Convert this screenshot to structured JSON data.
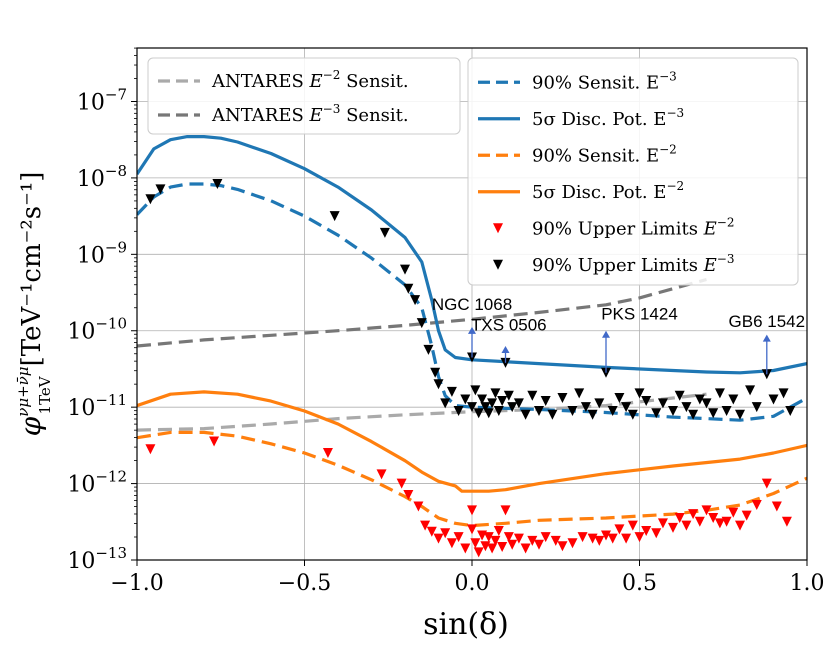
{
  "chart_data": {
    "type": "line",
    "xlabel": "sin(δ)",
    "ylabel_main": "φ",
    "ylabel_sup": "νμ+ν̄μ",
    "ylabel_sub": "1TeV",
    "ylabel_units": "[TeV⁻¹cm⁻²s⁻¹]",
    "xlim": [
      -1.0,
      1.0
    ],
    "ylim_log10": [
      -13,
      -6.3
    ],
    "x_ticks": [
      {
        "value": -1.0,
        "label": "−1.0"
      },
      {
        "value": -0.5,
        "label": "−0.5"
      },
      {
        "value": 0.0,
        "label": "0.0"
      },
      {
        "value": 0.5,
        "label": "0.5"
      },
      {
        "value": 1.0,
        "label": "1.0"
      }
    ],
    "y_ticks": [
      {
        "exp": -13,
        "base": "10",
        "sup": "−13"
      },
      {
        "exp": -12,
        "base": "10",
        "sup": "−12"
      },
      {
        "exp": -11,
        "base": "10",
        "sup": "−11"
      },
      {
        "exp": -10,
        "base": "10",
        "sup": "−10"
      },
      {
        "exp": -9,
        "base": "10",
        "sup": "−9"
      },
      {
        "exp": -8,
        "base": "10",
        "sup": "−8"
      },
      {
        "exp": -7,
        "base": "10",
        "sup": "−7"
      }
    ],
    "grid": true,
    "series": [
      {
        "name": "ANTARES E^-2 Sensit.",
        "color": "#aaaaaa",
        "style": "dashed",
        "x": [
          -1.0,
          -0.8,
          -0.6,
          -0.4,
          -0.2,
          0.0,
          0.2,
          0.4,
          0.6,
          0.7
        ],
        "log10y": [
          -11.3,
          -11.28,
          -11.22,
          -11.15,
          -11.1,
          -11.06,
          -11.03,
          -10.98,
          -10.88,
          -10.83
        ]
      },
      {
        "name": "ANTARES E^-3 Sensit.",
        "color": "#777777",
        "style": "dashed",
        "x": [
          -1.0,
          -0.8,
          -0.6,
          -0.4,
          -0.2,
          0.0,
          0.2,
          0.4,
          0.5,
          0.6,
          0.7
        ],
        "log10y": [
          -10.2,
          -10.12,
          -10.06,
          -10.0,
          -9.93,
          -9.85,
          -9.76,
          -9.66,
          -9.57,
          -9.45,
          -9.33
        ]
      },
      {
        "name": "90% Sensit. E^-3",
        "color": "#1f77b4",
        "style": "dashed",
        "x": [
          -1.0,
          -0.95,
          -0.9,
          -0.85,
          -0.8,
          -0.75,
          -0.7,
          -0.6,
          -0.5,
          -0.4,
          -0.3,
          -0.2,
          -0.15,
          -0.12,
          -0.1,
          -0.08,
          -0.05,
          0.0,
          0.2,
          0.4,
          0.6,
          0.7,
          0.8,
          0.9,
          1.0
        ],
        "log10y": [
          -8.48,
          -8.25,
          -8.12,
          -8.08,
          -8.08,
          -8.1,
          -8.15,
          -8.3,
          -8.5,
          -8.75,
          -9.05,
          -9.4,
          -9.7,
          -10.2,
          -10.6,
          -10.85,
          -10.98,
          -11.0,
          -11.03,
          -11.07,
          -11.13,
          -11.15,
          -11.17,
          -11.12,
          -10.88
        ]
      },
      {
        "name": "5σ Disc. Pot. E^-3",
        "color": "#1f77b4",
        "style": "solid",
        "x": [
          -1.0,
          -0.95,
          -0.9,
          -0.85,
          -0.8,
          -0.75,
          -0.7,
          -0.6,
          -0.5,
          -0.4,
          -0.3,
          -0.2,
          -0.15,
          -0.12,
          -0.1,
          -0.08,
          -0.05,
          0.0,
          0.2,
          0.4,
          0.6,
          0.7,
          0.8,
          0.9,
          1.0
        ],
        "log10y": [
          -7.95,
          -7.62,
          -7.5,
          -7.46,
          -7.46,
          -7.48,
          -7.53,
          -7.68,
          -7.88,
          -8.12,
          -8.42,
          -8.78,
          -9.1,
          -9.6,
          -10.0,
          -10.25,
          -10.35,
          -10.38,
          -10.43,
          -10.48,
          -10.52,
          -10.54,
          -10.55,
          -10.52,
          -10.43
        ]
      },
      {
        "name": "90% Sensit. E^-2",
        "color": "#ff7f0e",
        "style": "dashed",
        "x": [
          -1.0,
          -0.9,
          -0.8,
          -0.7,
          -0.6,
          -0.5,
          -0.4,
          -0.3,
          -0.2,
          -0.15,
          -0.1,
          -0.05,
          0.0,
          0.1,
          0.2,
          0.4,
          0.6,
          0.7,
          0.8,
          0.9,
          1.0
        ],
        "log10y": [
          -11.4,
          -11.33,
          -11.33,
          -11.38,
          -11.48,
          -11.6,
          -11.76,
          -11.95,
          -12.17,
          -12.3,
          -12.45,
          -12.52,
          -12.55,
          -12.52,
          -12.48,
          -12.45,
          -12.4,
          -12.35,
          -12.28,
          -12.13,
          -11.93
        ]
      },
      {
        "name": "5σ Disc. Pot. E^-2",
        "color": "#ff7f0e",
        "style": "solid",
        "x": [
          -1.0,
          -0.9,
          -0.8,
          -0.7,
          -0.6,
          -0.5,
          -0.4,
          -0.3,
          -0.2,
          -0.15,
          -0.1,
          -0.05,
          -0.03,
          0.0,
          0.05,
          0.1,
          0.2,
          0.4,
          0.6,
          0.8,
          0.9,
          1.0
        ],
        "log10y": [
          -10.98,
          -10.83,
          -10.8,
          -10.83,
          -10.92,
          -11.05,
          -11.22,
          -11.45,
          -11.7,
          -11.85,
          -11.97,
          -12.03,
          -12.1,
          -12.1,
          -12.1,
          -12.08,
          -12.0,
          -11.87,
          -11.77,
          -11.68,
          -11.6,
          -11.5
        ]
      }
    ],
    "upper_limits_e2": [
      [
        -0.96,
        -11.55
      ],
      [
        -0.77,
        -11.45
      ],
      [
        -0.43,
        -11.6
      ],
      [
        -0.27,
        -11.88
      ],
      [
        -0.21,
        -12.0
      ],
      [
        -0.19,
        -12.15
      ],
      [
        -0.16,
        -12.3
      ],
      [
        -0.14,
        -12.55
      ],
      [
        -0.12,
        -12.63
      ],
      [
        -0.1,
        -12.72
      ],
      [
        -0.08,
        -12.65
      ],
      [
        -0.06,
        -12.78
      ],
      [
        -0.04,
        -12.7
      ],
      [
        -0.02,
        -12.85
      ],
      [
        0.0,
        -12.35
      ],
      [
        0.0,
        -12.6
      ],
      [
        0.01,
        -12.78
      ],
      [
        0.02,
        -12.9
      ],
      [
        0.03,
        -12.68
      ],
      [
        0.04,
        -12.82
      ],
      [
        0.05,
        -12.7
      ],
      [
        0.06,
        -12.85
      ],
      [
        0.07,
        -12.75
      ],
      [
        0.08,
        -12.62
      ],
      [
        0.09,
        -12.83
      ],
      [
        0.1,
        -12.35
      ],
      [
        0.11,
        -12.7
      ],
      [
        0.12,
        -12.8
      ],
      [
        0.14,
        -12.72
      ],
      [
        0.16,
        -12.85
      ],
      [
        0.18,
        -12.75
      ],
      [
        0.2,
        -12.8
      ],
      [
        0.22,
        -12.7
      ],
      [
        0.25,
        -12.75
      ],
      [
        0.27,
        -12.82
      ],
      [
        0.3,
        -12.78
      ],
      [
        0.33,
        -12.7
      ],
      [
        0.36,
        -12.72
      ],
      [
        0.38,
        -12.75
      ],
      [
        0.4,
        -12.68
      ],
      [
        0.42,
        -12.72
      ],
      [
        0.44,
        -12.6
      ],
      [
        0.46,
        -12.72
      ],
      [
        0.48,
        -12.55
      ],
      [
        0.5,
        -12.7
      ],
      [
        0.52,
        -12.62
      ],
      [
        0.55,
        -12.65
      ],
      [
        0.57,
        -12.52
      ],
      [
        0.6,
        -12.58
      ],
      [
        0.62,
        -12.45
      ],
      [
        0.64,
        -12.55
      ],
      [
        0.66,
        -12.4
      ],
      [
        0.68,
        -12.5
      ],
      [
        0.7,
        -12.35
      ],
      [
        0.72,
        -12.45
      ],
      [
        0.74,
        -12.52
      ],
      [
        0.76,
        -12.5
      ],
      [
        0.78,
        -12.38
      ],
      [
        0.8,
        -12.55
      ],
      [
        0.82,
        -12.42
      ],
      [
        0.85,
        -12.28
      ],
      [
        0.88,
        -12.0
      ],
      [
        0.91,
        -12.3
      ],
      [
        0.94,
        -12.5
      ]
    ],
    "upper_limits_e3": [
      [
        -0.96,
        -8.28
      ],
      [
        -0.93,
        -8.15
      ],
      [
        -0.76,
        -8.08
      ],
      [
        -0.41,
        -8.5
      ],
      [
        -0.26,
        -8.72
      ],
      [
        -0.2,
        -9.2
      ],
      [
        -0.19,
        -9.45
      ],
      [
        -0.17,
        -9.6
      ],
      [
        -0.15,
        -9.9
      ],
      [
        -0.13,
        -10.25
      ],
      [
        -0.11,
        -10.55
      ],
      [
        -0.1,
        -10.7
      ],
      [
        -0.08,
        -10.95
      ],
      [
        -0.06,
        -10.8
      ],
      [
        -0.04,
        -11.05
      ],
      [
        -0.02,
        -10.9
      ],
      [
        0.0,
        -10.35
      ],
      [
        0.0,
        -11.0
      ],
      [
        0.01,
        -10.78
      ],
      [
        0.02,
        -11.08
      ],
      [
        0.03,
        -10.9
      ],
      [
        0.04,
        -11.0
      ],
      [
        0.05,
        -11.08
      ],
      [
        0.06,
        -10.95
      ],
      [
        0.07,
        -10.82
      ],
      [
        0.08,
        -11.05
      ],
      [
        0.09,
        -10.92
      ],
      [
        0.1,
        -10.42
      ],
      [
        0.11,
        -10.85
      ],
      [
        0.12,
        -11.0
      ],
      [
        0.14,
        -10.95
      ],
      [
        0.16,
        -11.1
      ],
      [
        0.18,
        -10.85
      ],
      [
        0.2,
        -11.05
      ],
      [
        0.22,
        -10.92
      ],
      [
        0.24,
        -11.1
      ],
      [
        0.27,
        -10.88
      ],
      [
        0.3,
        -11.05
      ],
      [
        0.32,
        -10.82
      ],
      [
        0.34,
        -11.0
      ],
      [
        0.36,
        -11.1
      ],
      [
        0.38,
        -10.95
      ],
      [
        0.4,
        -10.55
      ],
      [
        0.42,
        -11.05
      ],
      [
        0.44,
        -10.88
      ],
      [
        0.46,
        -11.0
      ],
      [
        0.48,
        -11.1
      ],
      [
        0.5,
        -10.82
      ],
      [
        0.52,
        -10.92
      ],
      [
        0.55,
        -11.08
      ],
      [
        0.57,
        -10.95
      ],
      [
        0.6,
        -11.05
      ],
      [
        0.62,
        -10.85
      ],
      [
        0.64,
        -11.0
      ],
      [
        0.66,
        -11.1
      ],
      [
        0.68,
        -10.9
      ],
      [
        0.7,
        -10.95
      ],
      [
        0.72,
        -11.08
      ],
      [
        0.74,
        -10.82
      ],
      [
        0.76,
        -11.05
      ],
      [
        0.78,
        -10.9
      ],
      [
        0.8,
        -11.1
      ],
      [
        0.83,
        -10.78
      ],
      [
        0.85,
        -11.0
      ],
      [
        0.88,
        -10.57
      ],
      [
        0.9,
        -10.9
      ],
      [
        0.93,
        -10.82
      ],
      [
        0.95,
        -11.05
      ]
    ],
    "annotations": [
      {
        "label": "NGC 1068",
        "x": 0.0,
        "arrow_from": -10.35,
        "arrow_to": -9.95,
        "text_x": 0.0,
        "text_log10y": -9.73
      },
      {
        "label": "TXS 0506",
        "x": 0.1,
        "arrow_from": -10.42,
        "arrow_to": -10.2,
        "text_x": 0.11,
        "text_log10y": -10.0
      },
      {
        "label": "PKS 1424",
        "x": 0.4,
        "arrow_from": -10.55,
        "arrow_to": -10.0,
        "text_x": 0.5,
        "text_log10y": -9.85
      },
      {
        "label": "GB6 1542",
        "x": 0.88,
        "arrow_from": -10.57,
        "arrow_to": -10.05,
        "text_x": 0.88,
        "text_log10y": -9.95
      }
    ]
  },
  "legend_left": [
    {
      "text_before": "ANTARES ",
      "text_math": "E",
      "text_sup": "−2",
      "text_after": " Sensit.",
      "color": "#aaaaaa",
      "style": "dashed"
    },
    {
      "text_before": "ANTARES ",
      "text_math": "E",
      "text_sup": "−3",
      "text_after": " Sensit.",
      "color": "#777777",
      "style": "dashed"
    }
  ],
  "legend_right": [
    {
      "text_before": "90% Sensit. E",
      "text_math": "",
      "text_sup": "−3",
      "text_after": "",
      "color": "#1f77b4",
      "style": "dashed",
      "marker": "line"
    },
    {
      "text_before": "5σ Disc. Pot. E",
      "text_math": "",
      "text_sup": "−3",
      "text_after": "",
      "color": "#1f77b4",
      "style": "solid",
      "marker": "line"
    },
    {
      "text_before": "90% Sensit. E",
      "text_math": "",
      "text_sup": "−2",
      "text_after": "",
      "color": "#ff7f0e",
      "style": "dashed",
      "marker": "line"
    },
    {
      "text_before": "5σ Disc. Pot. E",
      "text_math": "",
      "text_sup": "−2",
      "text_after": "",
      "color": "#ff7f0e",
      "style": "solid",
      "marker": "line"
    },
    {
      "text_before": "90% Upper Limits ",
      "text_math": "E",
      "text_sup": "−2",
      "text_after": "",
      "color": "#ff0000",
      "style": "none",
      "marker": "triangle"
    },
    {
      "text_before": "90% Upper Limits ",
      "text_math": "E",
      "text_sup": "−3",
      "text_after": "",
      "color": "#000000",
      "style": "none",
      "marker": "triangle"
    }
  ]
}
